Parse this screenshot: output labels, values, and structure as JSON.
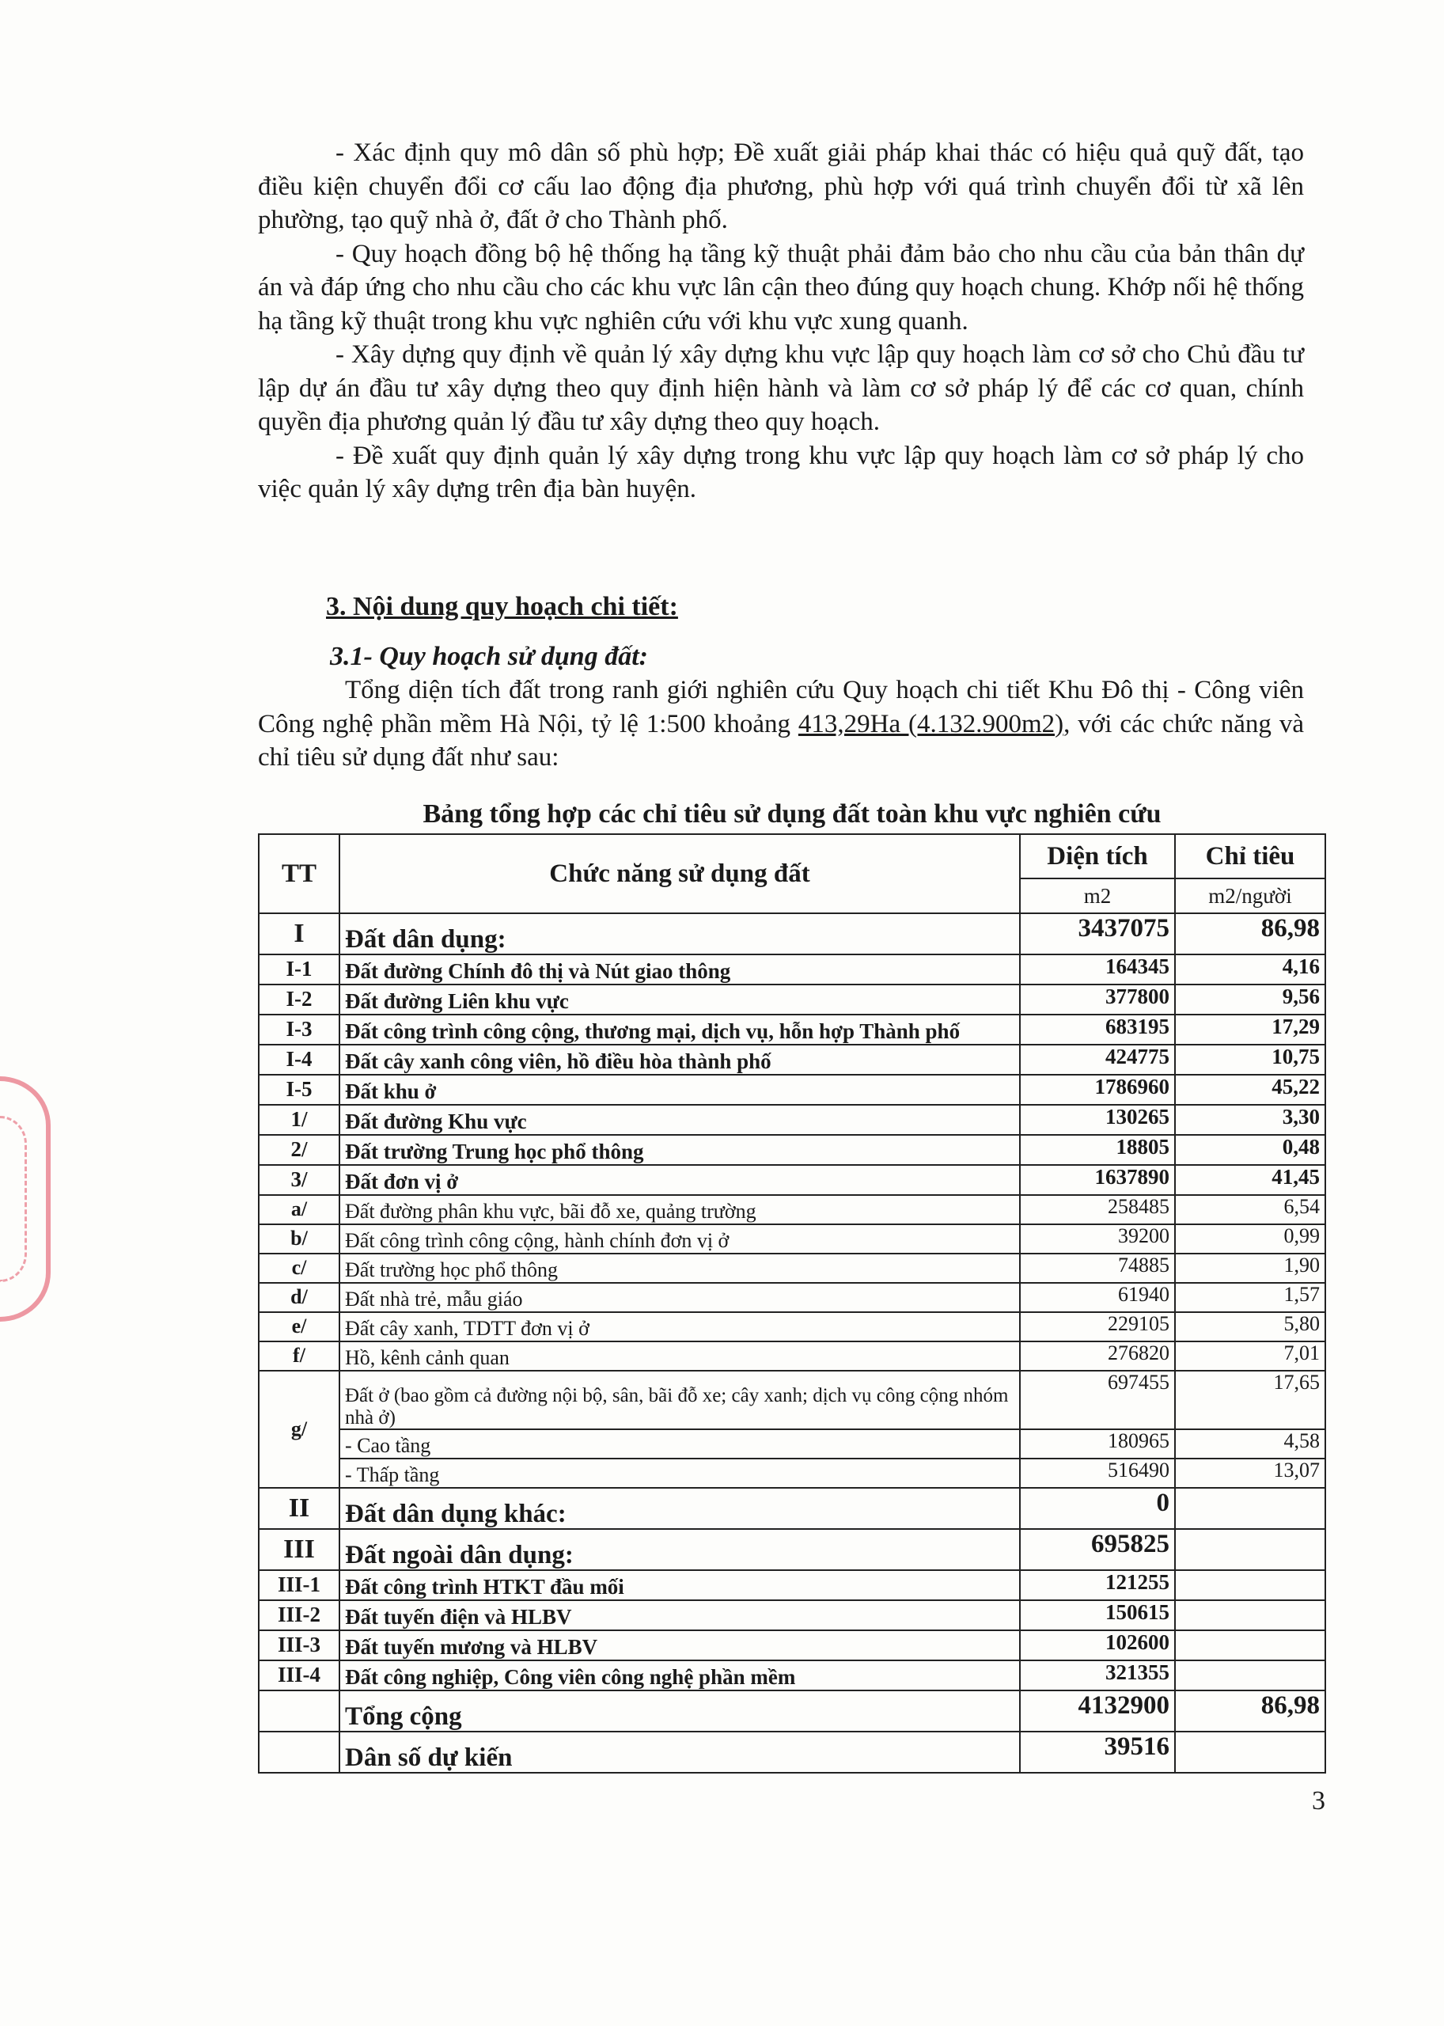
{
  "intro_paragraphs": [
    "- Xác định quy mô dân số phù hợp; Đề xuất giải pháp khai thác có hiệu quả quỹ đất, tạo điều kiện chuyển đổi cơ cấu lao động địa phương, phù hợp với quá trình chuyển đổi từ xã lên phường, tạo quỹ nhà ở, đất ở cho Thành phố.",
    "- Quy hoạch đồng bộ hệ thống hạ tầng kỹ thuật phải đảm bảo cho nhu cầu của bản thân dự án và đáp ứng cho nhu cầu cho các khu vực lân cận theo đúng quy hoạch chung. Khớp nối hệ thống hạ tầng kỹ thuật trong khu vực nghiên cứu với khu vực xung quanh.",
    "- Xây dựng quy định về quản lý xây dựng khu vực lập quy hoạch làm cơ sở cho Chủ đầu tư lập dự án đầu tư xây dựng theo quy định hiện hành và làm cơ sở pháp lý để các cơ quan, chính quyền địa phương quản lý đầu tư xây dựng theo quy hoạch.",
    "- Đề xuất quy định quản lý xây dựng trong khu vực lập quy hoạch làm cơ sở pháp lý cho việc quản lý xây dựng trên địa bàn huyện."
  ],
  "section_heading": "3. Nội dung quy hoạch chi tiết:",
  "subsection_heading": "3.1- Quy hoạch sử dụng đất:",
  "subsection_paragraph": {
    "before": "Tổng diện tích đất trong ranh giới nghiên cứu Quy hoạch chi tiết Khu Đô thị - Công viên Công nghệ phần mềm Hà Nội, tỷ lệ 1:500 khoảng ",
    "underlined": "413,29Ha (4.132.900m2)",
    "after": ", với các chức năng và chỉ tiêu sử dụng đất như sau:"
  },
  "table": {
    "caption": "Bảng tổng hợp các chỉ tiêu sử dụng đất toàn khu vực nghiên cứu",
    "headers": {
      "tt": "TT",
      "function": "Chức năng sử dụng đất",
      "area": "Diện tích",
      "index": "Chỉ tiêu",
      "area_unit": "m2",
      "index_unit": "m2/người"
    },
    "rows": [
      {
        "tt": "I",
        "name": "Đất dân dụng:",
        "area": "3437075",
        "index": "86,98",
        "style": "major"
      },
      {
        "tt": "I-1",
        "name": "Đất đường Chính đô thị và Nút giao thông",
        "area": "164345",
        "index": "4,16",
        "style": "bold"
      },
      {
        "tt": "I-2",
        "name": "Đất đường Liên khu vực",
        "area": "377800",
        "index": "9,56",
        "style": "bold"
      },
      {
        "tt": "I-3",
        "name": "Đất công trình công cộng, thương mại, dịch vụ, hỗn hợp Thành phố",
        "area": "683195",
        "index": "17,29",
        "style": "bold"
      },
      {
        "tt": "I-4",
        "name": "Đất cây xanh công viên, hồ điều hòa thành phố",
        "area": "424775",
        "index": "10,75",
        "style": "bold"
      },
      {
        "tt": "I-5",
        "name": "Đất khu ở",
        "area": "1786960",
        "index": "45,22",
        "style": "bold"
      },
      {
        "tt": "1/",
        "name": "Đất đường Khu vực",
        "area": "130265",
        "index": "3,30",
        "style": "bold"
      },
      {
        "tt": "2/",
        "name": "Đất trường Trung học phổ thông",
        "area": "18805",
        "index": "0,48",
        "style": "bold"
      },
      {
        "tt": "3/",
        "name": "Đất đơn vị ở",
        "area": "1637890",
        "index": "41,45",
        "style": "bold"
      },
      {
        "tt": "a/",
        "name": "Đất đường phân khu vực, bãi đỗ xe, quảng trường",
        "area": "258485",
        "index": "6,54",
        "style": "normal"
      },
      {
        "tt": "b/",
        "name": "Đất công trình công cộng, hành chính đơn vị ở",
        "area": "39200",
        "index": "0,99",
        "style": "normal"
      },
      {
        "tt": "c/",
        "name": "Đất trường học phổ thông",
        "area": "74885",
        "index": "1,90",
        "style": "normal"
      },
      {
        "tt": "d/",
        "name": "Đất nhà trẻ, mẫu giáo",
        "area": "61940",
        "index": "1,57",
        "style": "normal"
      },
      {
        "tt": "e/",
        "name": "Đất cây xanh, TDTT đơn vị ở",
        "area": "229105",
        "index": "5,80",
        "style": "normal"
      },
      {
        "tt": "f/",
        "name": "Hồ, kênh cảnh quan",
        "area": "276820",
        "index": "7,01",
        "style": "normal"
      },
      {
        "tt": "g/",
        "style": "group",
        "sub": [
          {
            "name": "Đất ở (bao gồm cả đường nội bộ, sân, bãi đỗ xe; cây xanh; dịch vụ công cộng nhóm nhà ở)",
            "area": "697455",
            "index": "17,65"
          },
          {
            "name": "- Cao tầng",
            "area": "180965",
            "index": "4,58"
          },
          {
            "name": "- Thấp tầng",
            "area": "516490",
            "index": "13,07"
          }
        ]
      },
      {
        "tt": "II",
        "name": "Đất dân dụng khác:",
        "area": "0",
        "index": "",
        "style": "major"
      },
      {
        "tt": "III",
        "name": "Đất ngoài dân dụng:",
        "area": "695825",
        "index": "",
        "style": "major"
      },
      {
        "tt": "III-1",
        "name": "Đất công trình HTKT đầu mối",
        "area": "121255",
        "index": "",
        "style": "bold"
      },
      {
        "tt": "III-2",
        "name": "Đất tuyến điện và HLBV",
        "area": "150615",
        "index": "",
        "style": "bold"
      },
      {
        "tt": "III-3",
        "name": "Đất tuyến mương và HLBV",
        "area": "102600",
        "index": "",
        "style": "bold"
      },
      {
        "tt": "III-4",
        "name": "Đất công nghiệp, Công viên công nghệ phần mềm",
        "area": "321355",
        "index": "",
        "style": "bold"
      },
      {
        "tt": "",
        "name": "Tổng cộng",
        "area": "4132900",
        "index": "86,98",
        "style": "major"
      },
      {
        "tt": "",
        "name": "Dân số dự kiến",
        "area": "39516",
        "index": "",
        "style": "major"
      }
    ]
  },
  "page_number": "3",
  "stamp_color": "#e0465a"
}
